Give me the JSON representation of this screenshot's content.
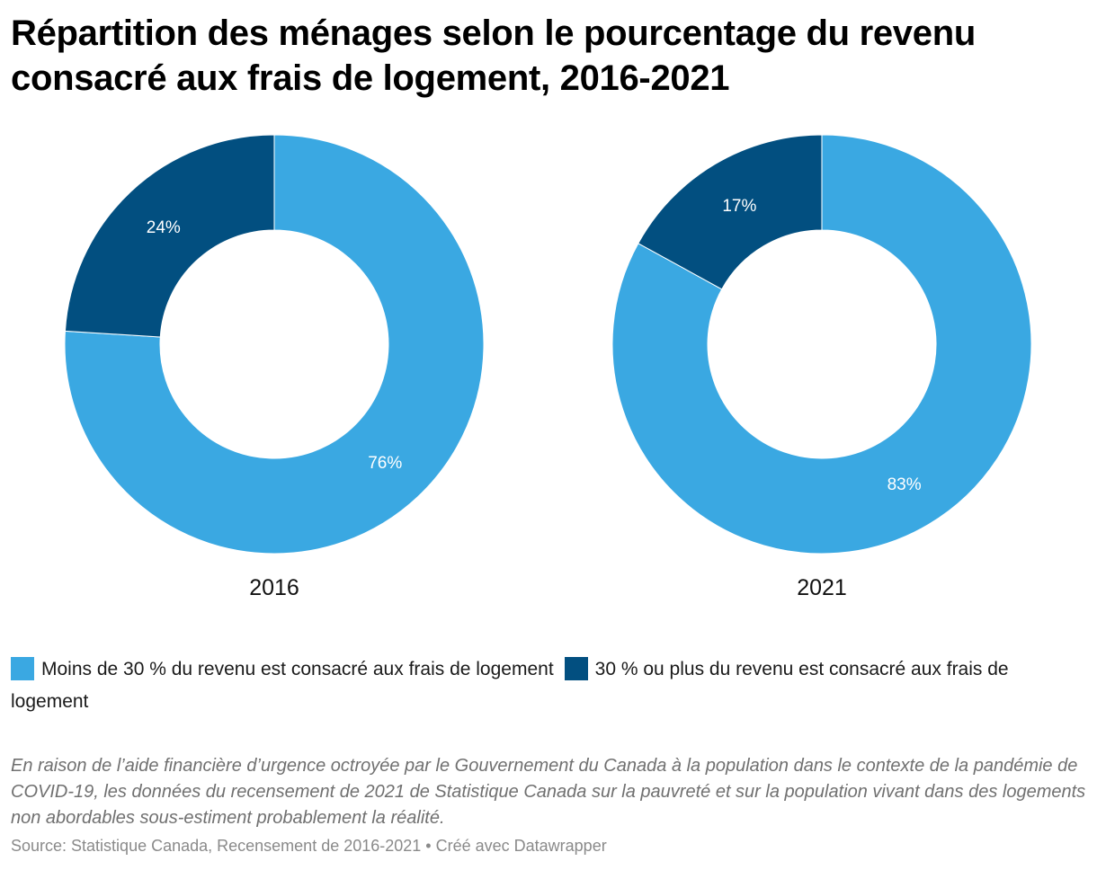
{
  "title": "Répartition des ménages selon le pourcentage du revenu consacré aux frais de logement, 2016-2021",
  "colors": {
    "light": "#3aa8e2",
    "dark": "#024f80",
    "label_text": "#ffffff",
    "year_text": "#111111"
  },
  "chart_data": {
    "type": "pie",
    "variant": "donut",
    "title": "Répartition des ménages selon le pourcentage du revenu consacré aux frais de logement, 2016-2021",
    "categories": [
      "Moins de 30 % du revenu est consacré aux frais de logement",
      "30 % ou plus du revenu est consacré aux frais de logement"
    ],
    "series": [
      {
        "name": "2016",
        "values": [
          76,
          24
        ],
        "labels": [
          "76%",
          "24%"
        ]
      },
      {
        "name": "2021",
        "values": [
          83,
          17
        ],
        "labels": [
          "83%",
          "17%"
        ]
      }
    ],
    "legend_position": "bottom"
  },
  "legend": {
    "items": [
      {
        "label": "Moins de 30 % du revenu est consacré aux frais de logement",
        "color": "#3aa8e2"
      },
      {
        "label": "30 % ou plus du revenu est consacré aux frais de logement",
        "color": "#024f80"
      }
    ]
  },
  "note": "En raison de l’aide financière d’urgence octroyée par le Gouvernement du Canada à la population dans le contexte de la pandémie de COVID-19, les données du recensement de 2021 de Statistique Canada sur la pauvreté et sur la population vivant dans des logements non abordables sous-estiment probablement la réalité.",
  "source": "Source: Statistique Canada, Recensement de 2016-2021 • Créé avec Datawrapper"
}
